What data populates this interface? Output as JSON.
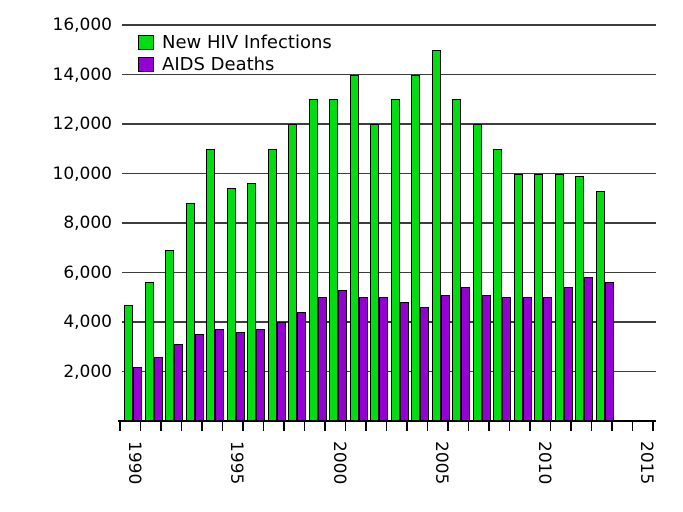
{
  "chart_data": {
    "type": "bar",
    "title": "",
    "categories": [
      1990,
      1991,
      1992,
      1993,
      1994,
      1995,
      1996,
      1997,
      1998,
      1999,
      2000,
      2001,
      2002,
      2003,
      2004,
      2005,
      2006,
      2007,
      2008,
      2009,
      2010,
      2011,
      2012,
      2013
    ],
    "series": [
      {
        "name": "New HIV Infections",
        "color": "#00DD11",
        "values": [
          4700,
          5600,
          6900,
          8800,
          11000,
          9400,
          9600,
          11000,
          12000,
          13000,
          13000,
          14000,
          12000,
          13000,
          14000,
          15000,
          13000,
          12000,
          11000,
          10000,
          10000,
          10000,
          9900,
          9300
        ]
      },
      {
        "name": "AIDS Deaths",
        "color": "#9400D3",
        "values": [
          2200,
          2600,
          3100,
          3500,
          3700,
          3600,
          3700,
          4000,
          4400,
          5000,
          5300,
          5000,
          5000,
          4800,
          4600,
          5100,
          5400,
          5100,
          5000,
          5000,
          5000,
          5400,
          5800,
          5600
        ]
      }
    ],
    "xlabel": "",
    "ylabel": "",
    "ylim": [
      0,
      16000
    ],
    "ytick_interval": 2000,
    "ytick_labels": [
      "2,000",
      "4,000",
      "6,000",
      "8,000",
      "10,000",
      "12,000",
      "14,000",
      "16,000"
    ],
    "x_axis": {
      "start_year": 1990,
      "end_year": 2016,
      "labeled_years": [
        "1990",
        "1995",
        "2000",
        "2005",
        "2010",
        "2015"
      ],
      "tick_every_year": true,
      "label_rotation_deg": 90
    },
    "grid": "horizontal",
    "legend_position": "top-inside-left"
  }
}
